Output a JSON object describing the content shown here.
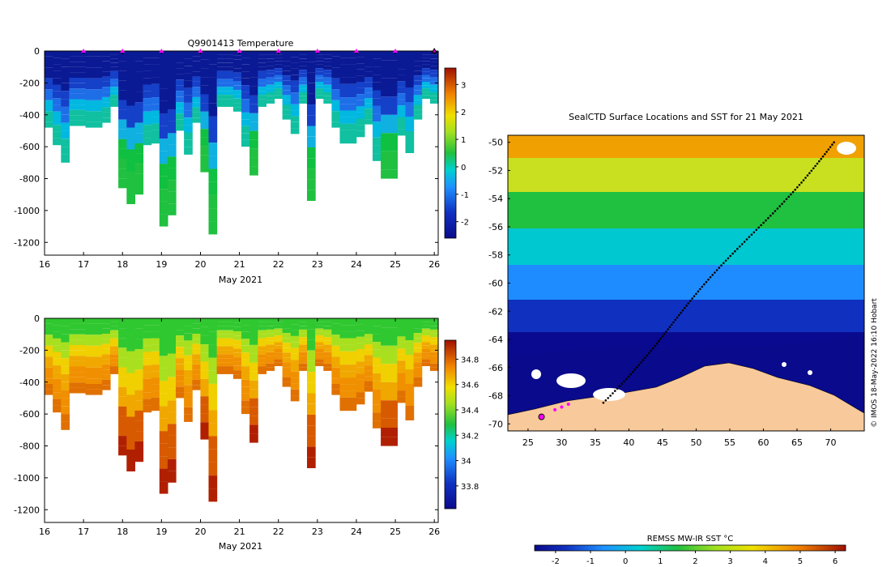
{
  "chart_data": [
    {
      "type": "heatmap",
      "title": "Q9901413  Temperature",
      "xlabel": "May 2021",
      "ylabel": "",
      "xlim": [
        16,
        26.1
      ],
      "ylim": [
        -1280,
        0
      ],
      "x_ticks": [
        "16",
        "17",
        "18",
        "19",
        "20",
        "21",
        "22",
        "23",
        "24",
        "25",
        "26"
      ],
      "y_ticks": [
        "0",
        "-200",
        "-400",
        "-600",
        "-800",
        "-1000",
        "-1200"
      ],
      "colorbar": {
        "ticks": [
          "-2",
          "-1",
          "0",
          "1",
          "2",
          "3"
        ],
        "range": [
          -2.6,
          3.6
        ]
      },
      "surface_markers_x": [
        17,
        18,
        19,
        20,
        21,
        22,
        23,
        24,
        25,
        26
      ]
    },
    {
      "type": "heatmap",
      "title": "",
      "xlabel": "May 2021",
      "ylabel": "",
      "xlim": [
        16,
        26.1
      ],
      "ylim": [
        -1280,
        0
      ],
      "x_ticks": [
        "16",
        "17",
        "18",
        "19",
        "20",
        "21",
        "22",
        "23",
        "24",
        "25",
        "26"
      ],
      "y_ticks": [
        "0",
        "-200",
        "-400",
        "-600",
        "-800",
        "-1000",
        "-1200"
      ],
      "colorbar": {
        "ticks": [
          "33.8",
          "34",
          "34.2",
          "34.4",
          "34.6",
          "34.8"
        ],
        "range": [
          33.62,
          34.95
        ]
      }
    },
    {
      "type": "heatmap",
      "title": "SealCTD Surface Locations and SST for 21 May 2021",
      "xlabel": "",
      "ylabel": "",
      "xlim": [
        22,
        75
      ],
      "ylim": [
        -70.5,
        -49.5
      ],
      "x_ticks": [
        "25",
        "30",
        "35",
        "40",
        "45",
        "50",
        "55",
        "60",
        "65",
        "70"
      ],
      "y_ticks": [
        "-50",
        "-52",
        "-54",
        "-56",
        "-58",
        "-60",
        "-62",
        "-64",
        "-66",
        "-68",
        "-70"
      ],
      "track_start": [
        70.5,
        -50
      ],
      "track_end": [
        36,
        -68.5
      ],
      "colorbar": {
        "label": "REMSS MW-IR SST °C",
        "ticks": [
          "-2",
          "-1",
          "0",
          "1",
          "2",
          "3",
          "4",
          "5",
          "6"
        ],
        "range": [
          -2.6,
          6.3
        ]
      },
      "side_label": "© IMOS 18-May-2022 16:10 Hobart"
    }
  ]
}
